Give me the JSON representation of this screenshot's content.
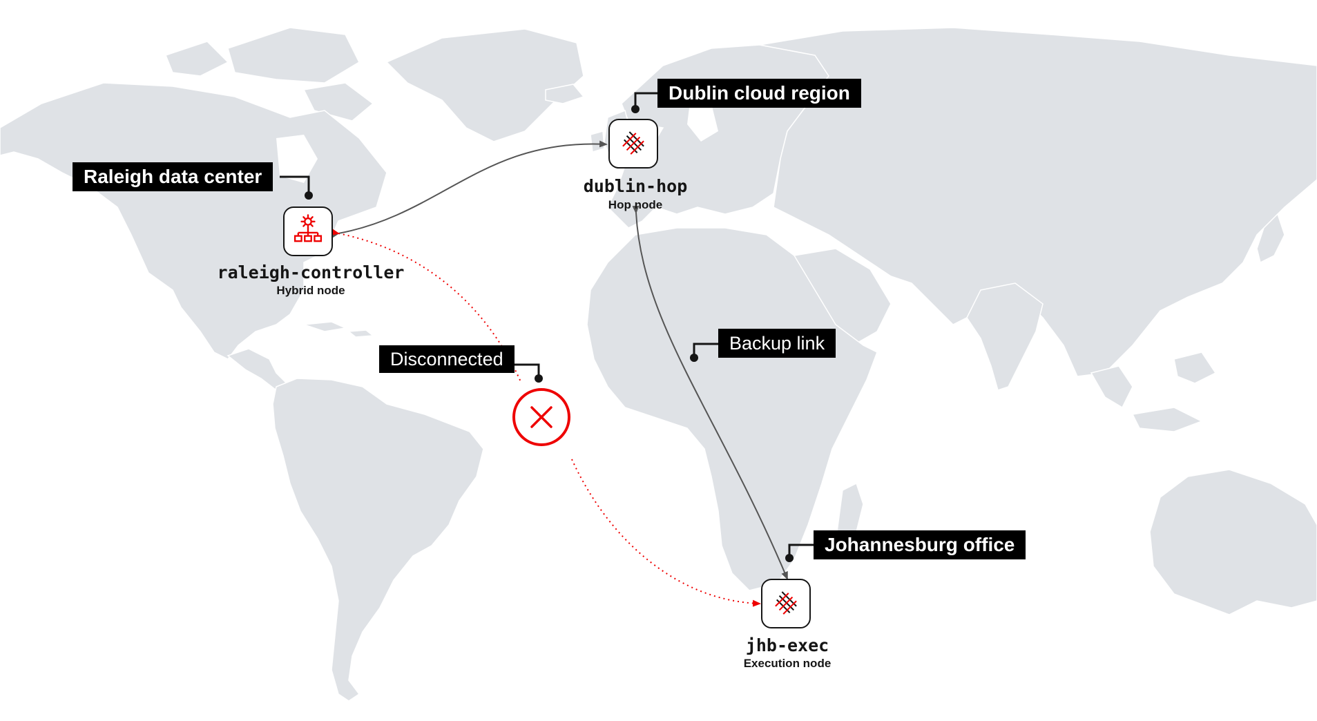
{
  "regions": {
    "raleigh": "Raleigh data center",
    "dublin": "Dublin cloud region",
    "johannesburg": "Johannesburg office"
  },
  "nodes": {
    "raleigh": {
      "name": "raleigh-controller",
      "type": "Hybrid node",
      "icon": "hierarchy-gear-icon"
    },
    "dublin": {
      "name": "dublin-hop",
      "type": "Hop node",
      "icon": "mesh-grid-icon"
    },
    "jhb": {
      "name": "jhb-exec",
      "type": "Execution node",
      "icon": "mesh-grid-icon"
    }
  },
  "links": {
    "disconnected_label": "Disconnected",
    "backup_label": "Backup link"
  },
  "colors": {
    "accent": "#ee0000",
    "land": "#dfe2e6",
    "ink": "#151515",
    "active_link": "#555555"
  }
}
